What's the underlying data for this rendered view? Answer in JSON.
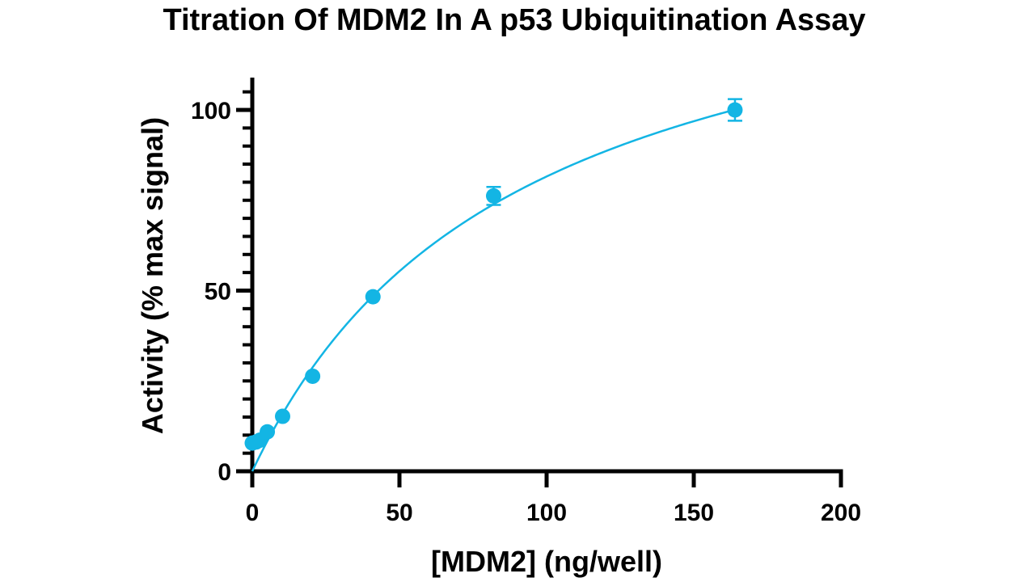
{
  "chart_data": {
    "type": "scatter",
    "title": "Titration Of MDM2 In A p53 Ubiquitination Assay",
    "xlabel": "[MDM2] (ng/well)",
    "ylabel": "Activity (% max signal)",
    "xlim": [
      0,
      200
    ],
    "ylim": [
      0,
      100
    ],
    "x_ticks": [
      0,
      50,
      100,
      150,
      200
    ],
    "x_tick_labels": [
      "0",
      "50",
      "100",
      "150",
      "200"
    ],
    "y_ticks": [
      0,
      50,
      100
    ],
    "y_tick_labels": [
      "0",
      "50",
      "100"
    ],
    "grid": false,
    "legend": "none",
    "series": [
      {
        "points": [
          {
            "x": 0,
            "y": 7.8,
            "err": 0
          },
          {
            "x": 1.3,
            "y": 8.1,
            "err": 0
          },
          {
            "x": 2.6,
            "y": 8.6,
            "err": 0
          },
          {
            "x": 5.1,
            "y": 10.9,
            "err": 0
          },
          {
            "x": 10.3,
            "y": 15.2,
            "err": 0
          },
          {
            "x": 20.5,
            "y": 26.3,
            "err": 0
          },
          {
            "x": 41,
            "y": 48.3,
            "err": 0
          },
          {
            "x": 82,
            "y": 76.2,
            "err": 2.5
          },
          {
            "x": 164,
            "y": 100,
            "err": 3
          }
        ]
      }
    ],
    "fit": {
      "model": "one-site binding",
      "bmax": 155,
      "kd": 90,
      "x_range": [
        0,
        164
      ]
    },
    "colors": {
      "series": "#13b5e4",
      "axis": "#000000"
    }
  }
}
